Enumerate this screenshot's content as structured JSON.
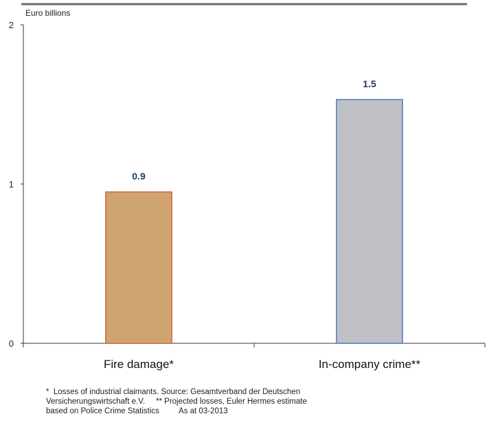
{
  "chart_data": {
    "type": "bar",
    "ylabel": "Euro billions",
    "categories": [
      "Fire damage*",
      "In-company crime**"
    ],
    "values": [
      0.95,
      1.53
    ],
    "data_labels": [
      "0.9",
      "1.5"
    ],
    "yticks": [
      "0",
      "1",
      "2"
    ],
    "ylim": [
      0,
      2
    ],
    "grid": false,
    "colors": {
      "fire_fill": "#cfa46f",
      "fire_stroke": "#d17a5c",
      "crime_fill": "#bfc0c4",
      "crime_stroke": "#6f8fc9",
      "label_color": "#1f3a64"
    }
  },
  "footnotes": [
    "*  Losses of industrial claimants. Source: Gesamtverband der Deutschen",
    "Versicherungswirtschaft e.V.     ** Projected losses, Euler Hermes estimate",
    "based on Police Crime Statistics         As at 03-2013"
  ]
}
